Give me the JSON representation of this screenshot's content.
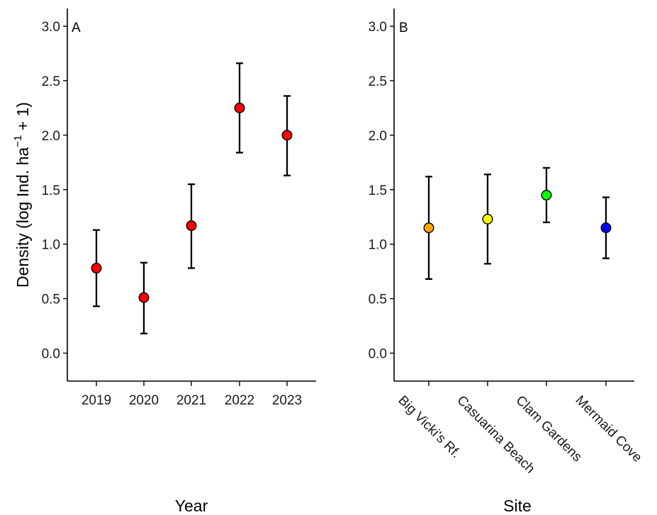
{
  "chart_data": [
    {
      "type": "scatter",
      "panel_label": "A",
      "xlabel": "Year",
      "ylabel_main": "Density (log Ind. ha",
      "ylabel_sup": "−1",
      "ylabel_tail": " + 1)",
      "ylim": [
        -0.2,
        3.15
      ],
      "yticks": [
        "0.0",
        "0.5",
        "1.0",
        "1.5",
        "2.0",
        "2.5",
        "3.0"
      ],
      "grid": false,
      "categories": [
        "2019",
        "2020",
        "2021",
        "2022",
        "2023"
      ],
      "points": [
        {
          "x": "2019",
          "y": 0.78,
          "lower": 0.43,
          "upper": 1.13,
          "color": "#ff0000"
        },
        {
          "x": "2020",
          "y": 0.51,
          "lower": 0.18,
          "upper": 0.83,
          "color": "#ff0000"
        },
        {
          "x": "2021",
          "y": 1.17,
          "lower": 0.78,
          "upper": 1.55,
          "color": "#ff0000"
        },
        {
          "x": "2022",
          "y": 2.25,
          "lower": 1.84,
          "upper": 2.66,
          "color": "#ff0000"
        },
        {
          "x": "2023",
          "y": 2.0,
          "lower": 1.63,
          "upper": 2.36,
          "color": "#ff0000"
        }
      ]
    },
    {
      "type": "scatter",
      "panel_label": "B",
      "xlabel": "Site",
      "ylim": [
        -0.2,
        3.15
      ],
      "yticks": [
        "0.0",
        "0.5",
        "1.0",
        "1.5",
        "2.0",
        "2.5",
        "3.0"
      ],
      "grid": false,
      "categories": [
        "Big Vicki's Rf.",
        "Casuarina Beach",
        "Clam Gardens",
        "Mermaid Cove"
      ],
      "points": [
        {
          "x": "Big Vicki's Rf.",
          "y": 1.15,
          "lower": 0.68,
          "upper": 1.62,
          "color": "#ffa500"
        },
        {
          "x": "Casuarina Beach",
          "y": 1.23,
          "lower": 0.82,
          "upper": 1.64,
          "color": "#ffff00"
        },
        {
          "x": "Clam Gardens",
          "y": 1.45,
          "lower": 1.2,
          "upper": 1.7,
          "color": "#00ff00"
        },
        {
          "x": "Mermaid Cove",
          "y": 1.15,
          "lower": 0.87,
          "upper": 1.43,
          "color": "#0000ff"
        }
      ]
    }
  ]
}
